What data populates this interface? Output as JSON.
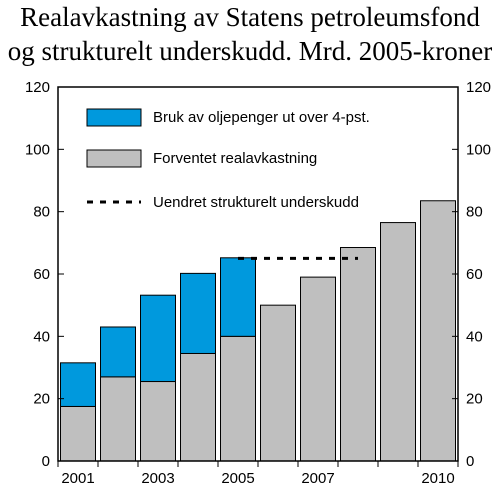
{
  "title_line1": "Realavkastning av Statens petroleumsfond",
  "title_line2": "og strukturelt underskudd. Mrd. 2005-kroner",
  "chart_data": {
    "type": "bar",
    "stacked": true,
    "categories": [
      "2001",
      "2002",
      "2003",
      "2004",
      "2005",
      "2006",
      "2007",
      "2008",
      "2009",
      "2010"
    ],
    "x_tick_labels": [
      "2001",
      "",
      "2003",
      "",
      "2005",
      "",
      "2007",
      "",
      "",
      "2010"
    ],
    "series": [
      {
        "name": "Forventet realavkastning",
        "color": "#bfbfbf",
        "values": [
          17.5,
          27,
          25.5,
          34.5,
          40,
          50,
          59,
          68.5,
          76.5,
          83.5
        ]
      },
      {
        "name": "Bruk av oljepenger ut over 4-pst.",
        "color": "#0099dd",
        "values": [
          14,
          16,
          27.7,
          25.7,
          25.2,
          0,
          0,
          0,
          0,
          0
        ]
      }
    ],
    "line": {
      "name": "Uendret strukturelt underskudd",
      "style": "dashed",
      "color": "#000000",
      "y": 65,
      "x_from": "2005",
      "x_to": "2008"
    },
    "ylim": [
      0,
      120
    ],
    "yticks": [
      0,
      20,
      40,
      60,
      80,
      100,
      120
    ],
    "legend": {
      "placement": "top-left",
      "entries": [
        "Bruk av oljepenger ut over 4-pst.",
        "Forventet realavkastning",
        "Uendret strukturelt underskudd"
      ]
    },
    "grid": false
  }
}
